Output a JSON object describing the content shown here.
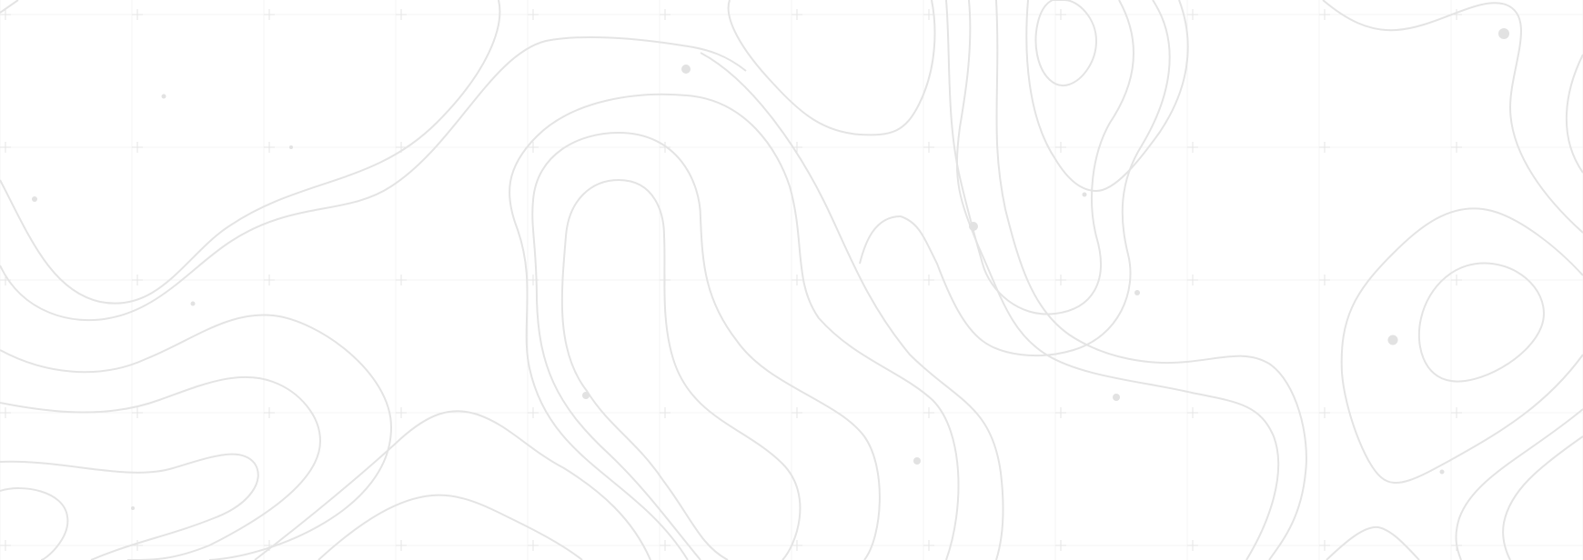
{
  "background": {
    "pattern": "topographic-contour-map",
    "colors": {
      "background": "#ffffff",
      "contour": "#e4e4e4",
      "grid": "#f4f4f4",
      "marker": "#e2e2e2"
    }
  }
}
